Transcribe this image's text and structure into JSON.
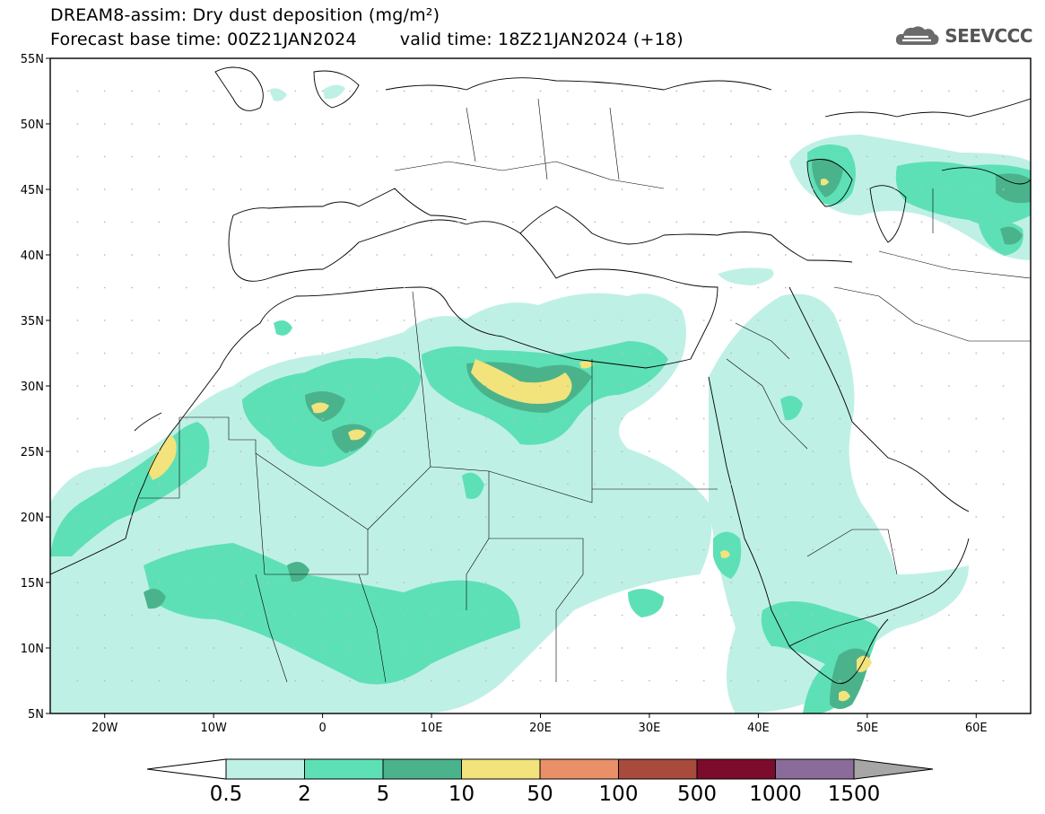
{
  "header": {
    "title": "DREAM8-assim: Dry dust deposition (mg/m²)",
    "base_time": "Forecast base time: 00Z21JAN2024",
    "valid_time": "valid time: 18Z21JAN2024 (+18)"
  },
  "logo": {
    "text": "SEEVCCC",
    "icon": "cloud-icon"
  },
  "map": {
    "lat_labels": [
      "55N",
      "50N",
      "45N",
      "40N",
      "35N",
      "30N",
      "25N",
      "20N",
      "15N",
      "10N",
      "5N"
    ],
    "lon_labels": [
      "20W",
      "10W",
      "0",
      "10E",
      "20E",
      "30E",
      "40E",
      "50E",
      "60E"
    ],
    "levels_colors": {
      "l1": "#bff0e6",
      "l2": "#5ee0b6",
      "l3": "#4bb38c",
      "l4": "#f2e37c",
      "l5": "#e99068",
      "l6": "#a84a3c",
      "l7": "#7c0c2c",
      "l8": "#8a6b9a",
      "l9": "#a6a6a6"
    }
  },
  "colorbar": {
    "labels": [
      "0.5",
      "2",
      "5",
      "10",
      "50",
      "100",
      "500",
      "1000",
      "1500"
    ],
    "colors": [
      "#bff0e6",
      "#5ee0b6",
      "#4bb38c",
      "#f2e37c",
      "#e99068",
      "#a84a3c",
      "#7c0c2c",
      "#8a6b9a",
      "#a6a6a6"
    ]
  }
}
